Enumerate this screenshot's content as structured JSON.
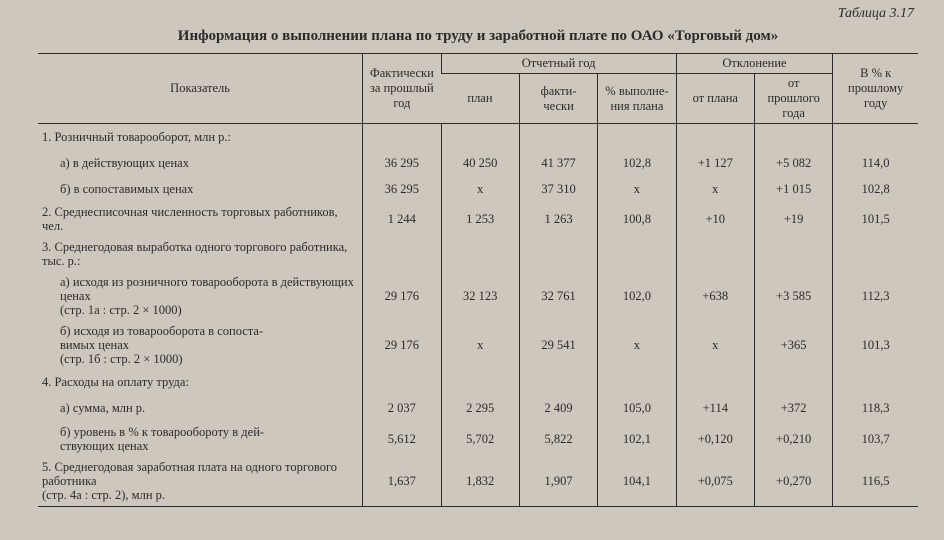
{
  "tableLabel": "Таблица 3.17",
  "title": "Информация о выполнении плана по труду и заработной плате по ОАО «Торговый дом»",
  "headers": {
    "indicator": "Показатель",
    "factPrev": "Фактически за прошлый год",
    "reportYear": "Отчетный год",
    "plan": "план",
    "fact": "факти-\nчески",
    "pctPlan": "% выполне-\nния плана",
    "deviation": "Отклонение",
    "fromPlan": "от плана",
    "fromPrev": "от прошлого года",
    "pctPrev": "В % к прошлому году"
  },
  "rows": [
    {
      "label": "1. Розничный товарооборот, млн р.:",
      "indent": false,
      "multi": false,
      "c1": "",
      "c2": "",
      "c3": "",
      "c4": "",
      "c5": "",
      "c6": "",
      "c7": ""
    },
    {
      "label": "а) в действующих ценах",
      "indent": true,
      "multi": false,
      "c1": "36 295",
      "c2": "40 250",
      "c3": "41 377",
      "c4": "102,8",
      "c5": "+1 127",
      "c6": "+5 082",
      "c7": "114,0"
    },
    {
      "label": "б) в сопоставимых ценах",
      "indent": true,
      "multi": false,
      "c1": "36 295",
      "c2": "x",
      "c3": "37 310",
      "c4": "x",
      "c5": "x",
      "c6": "+1 015",
      "c7": "102,8"
    },
    {
      "label": "2. Среднесписочная численность торговых работников, чел.",
      "indent": false,
      "multi": true,
      "c1": "1 244",
      "c2": "1 253",
      "c3": "1 263",
      "c4": "100,8",
      "c5": "+10",
      "c6": "+19",
      "c7": "101,5"
    },
    {
      "label": "3. Среднегодовая выработка одного торгового работника, тыс. р.:",
      "indent": false,
      "multi": true,
      "c1": "",
      "c2": "",
      "c3": "",
      "c4": "",
      "c5": "",
      "c6": "",
      "c7": ""
    },
    {
      "label": "а) исходя из розничного товарооборота в действующих ценах\n(стр. 1а : стр. 2 × 1000)",
      "indent": true,
      "multi": true,
      "c1": "29 176",
      "c2": "32 123",
      "c3": "32 761",
      "c4": "102,0",
      "c5": "+638",
      "c6": "+3 585",
      "c7": "112,3"
    },
    {
      "label": "б) исходя из товарооборота в сопоста-\nвимых ценах\n(стр. 1б : стр. 2 × 1000)",
      "indent": true,
      "multi": true,
      "c1": "29 176",
      "c2": "x",
      "c3": "29 541",
      "c4": "x",
      "c5": "x",
      "c6": "+365",
      "c7": "101,3"
    },
    {
      "label": "4. Расходы на оплату труда:",
      "indent": false,
      "multi": false,
      "c1": "",
      "c2": "",
      "c3": "",
      "c4": "",
      "c5": "",
      "c6": "",
      "c7": ""
    },
    {
      "label": "а) сумма, млн р.",
      "indent": true,
      "multi": false,
      "c1": "2 037",
      "c2": "2 295",
      "c3": "2 409",
      "c4": "105,0",
      "c5": "+114",
      "c6": "+372",
      "c7": "118,3"
    },
    {
      "label": "б) уровень в % к товарообороту в дей-\nствующих ценах",
      "indent": true,
      "multi": true,
      "c1": "5,612",
      "c2": "5,702",
      "c3": "5,822",
      "c4": "102,1",
      "c5": "+0,120",
      "c6": "+0,210",
      "c7": "103,7"
    },
    {
      "label": "5. Среднегодовая заработная плата на одного торгового работника\n(стр. 4а : стр. 2), млн р.",
      "indent": false,
      "multi": true,
      "c1": "1,637",
      "c2": "1,832",
      "c3": "1,907",
      "c4": "104,1",
      "c5": "+0,075",
      "c6": "+0,270",
      "c7": "116,5"
    }
  ]
}
